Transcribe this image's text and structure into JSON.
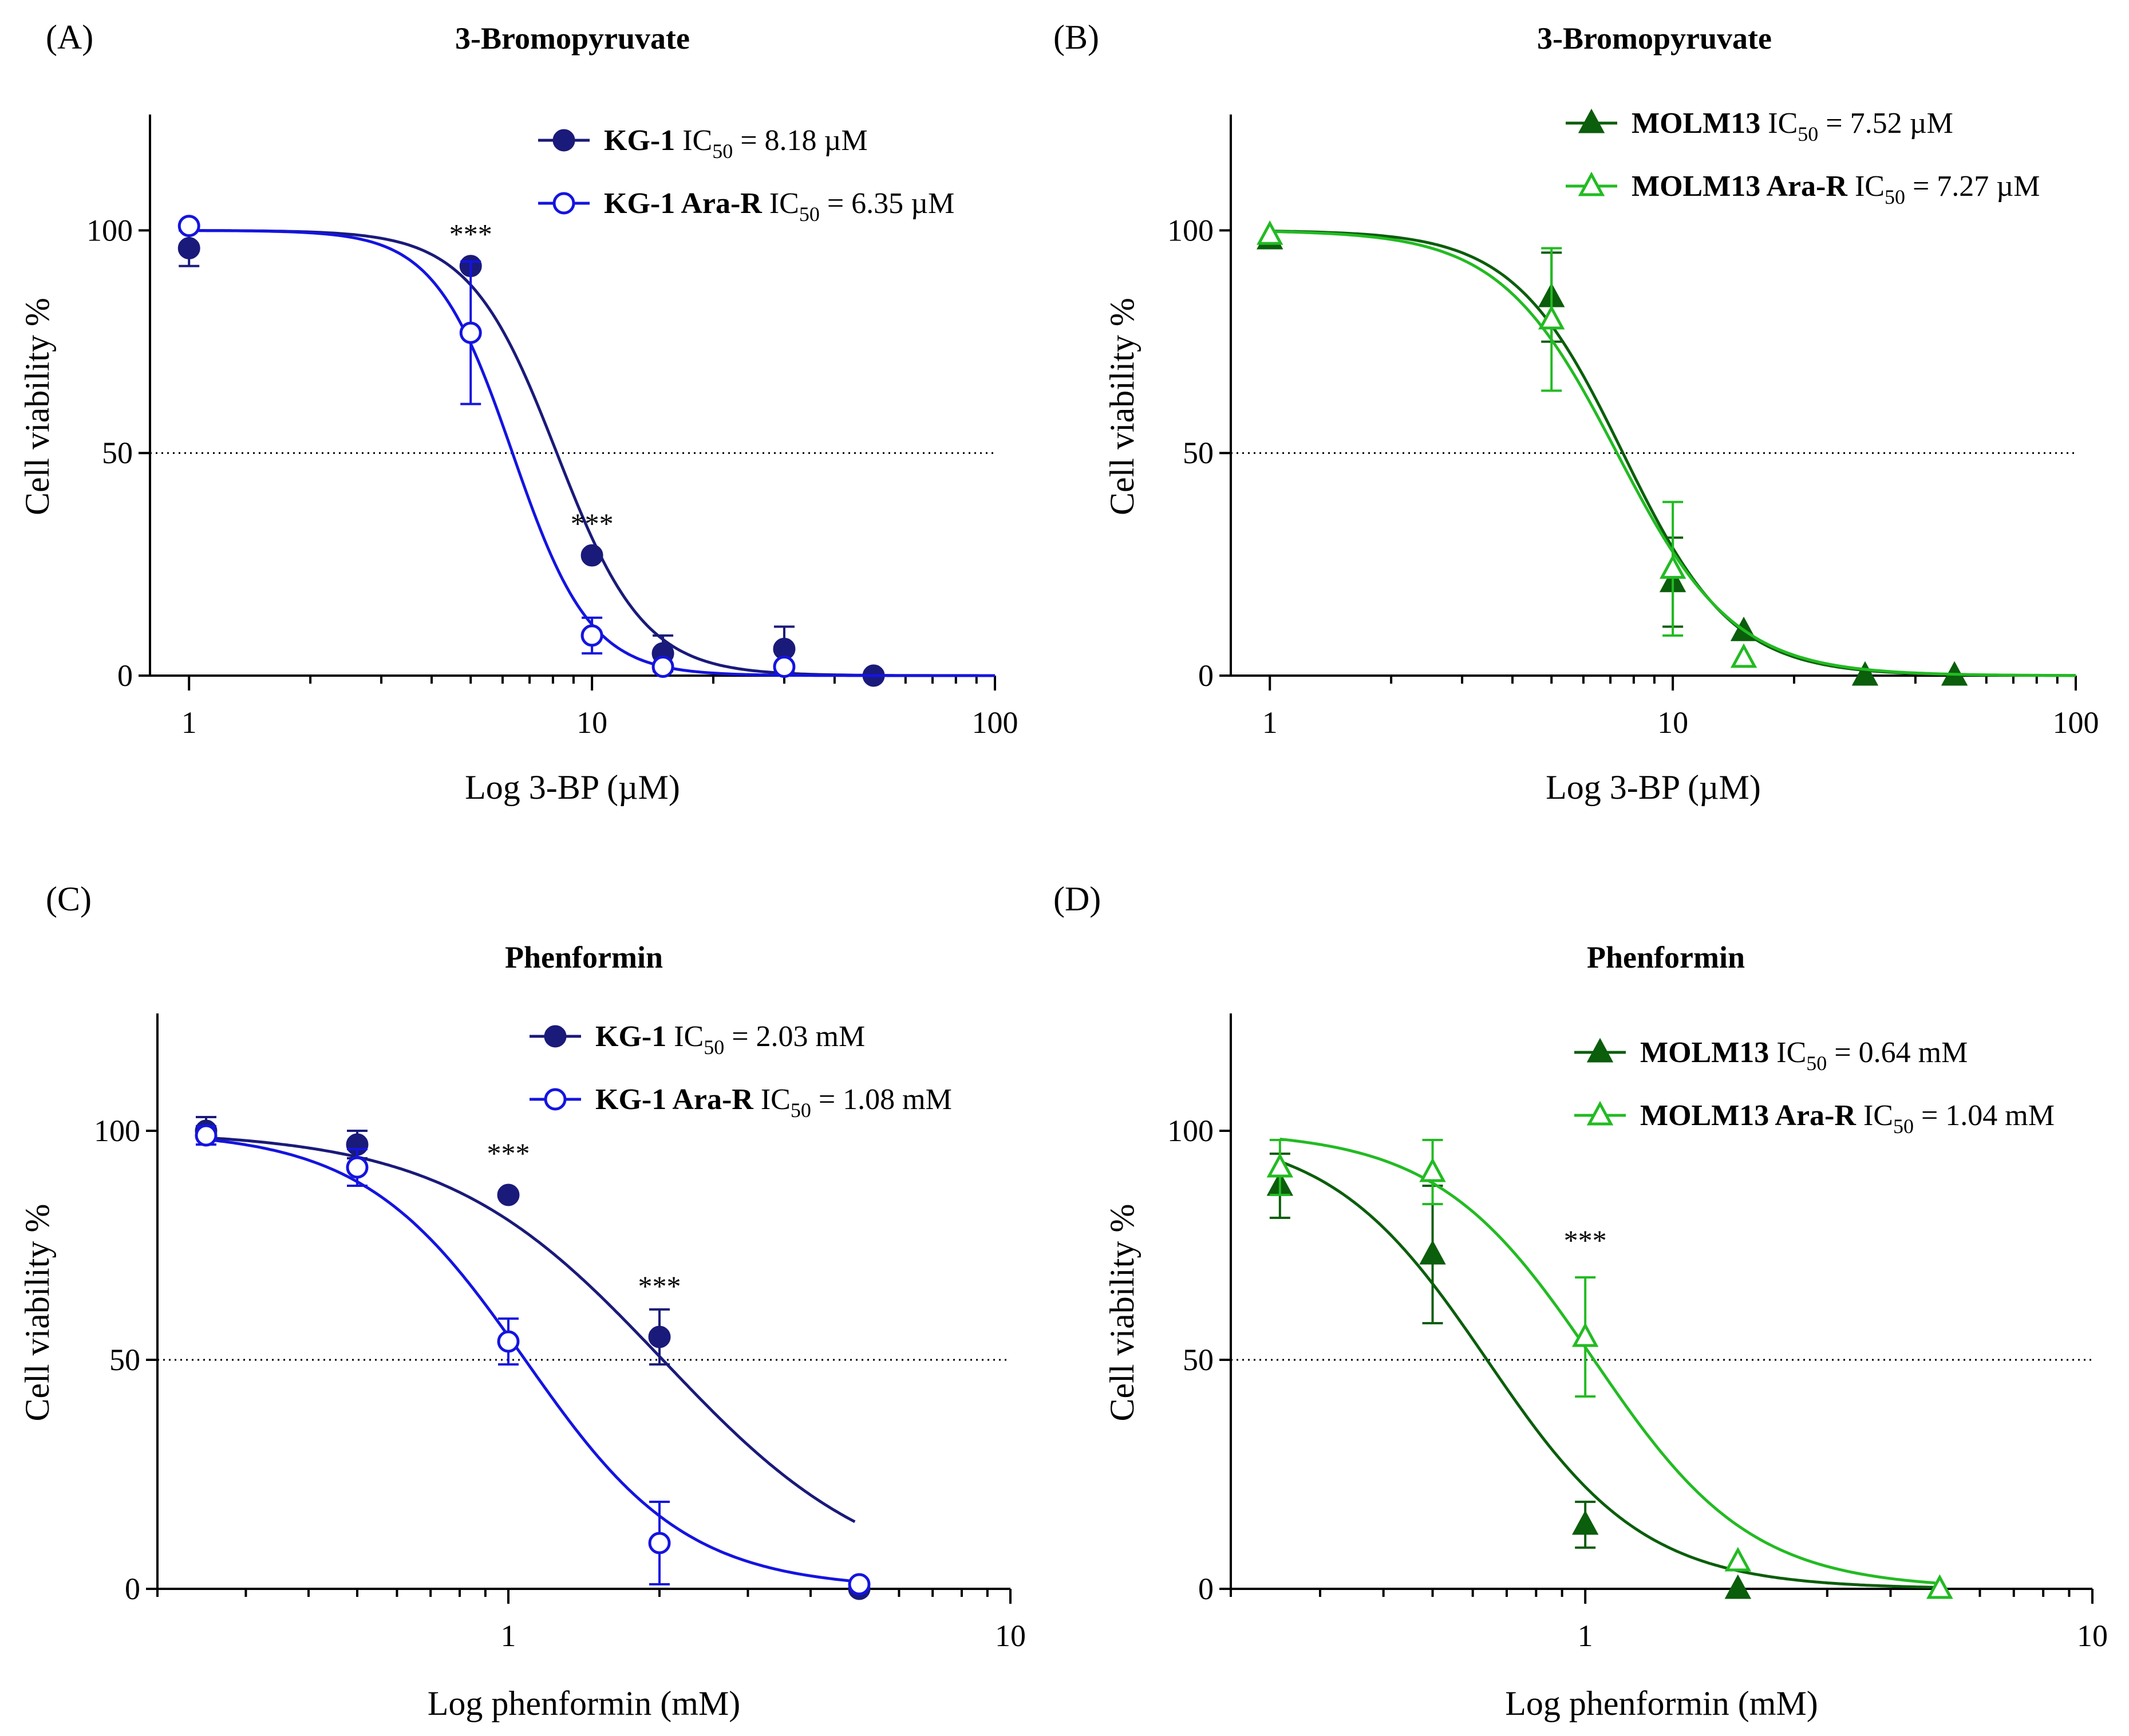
{
  "chart_data": [
    {
      "id": "A",
      "type": "scatter",
      "panel_label": "(A)",
      "title": "3-Bromopyruvate",
      "xlabel": "Log 3-BP (µM)",
      "ylabel": "Cell viability %",
      "xscale": "log",
      "xlim": [
        0.8,
        100
      ],
      "ylim": [
        0,
        125
      ],
      "xticks": [
        1,
        10,
        100
      ],
      "xtick_labels": [
        "1",
        "10",
        "100"
      ],
      "xminor_ticks": [
        2,
        3,
        4,
        5,
        6,
        7,
        8,
        9,
        20,
        30,
        40,
        50,
        60,
        70,
        80,
        90
      ],
      "yticks": [
        0,
        50,
        100
      ],
      "ytick_labels": [
        "0",
        "50",
        "100"
      ],
      "reference_line": 50,
      "legend_position": "top-right",
      "series": [
        {
          "name": "KG-1",
          "ic50_text": "8.18 µM",
          "color": "#1a1a7a",
          "marker": "circle",
          "filled": true,
          "x": [
            1,
            5,
            10,
            15,
            30,
            50
          ],
          "y": [
            96,
            92,
            27,
            5,
            6,
            0
          ],
          "err": [
            4,
            0,
            0,
            4,
            5,
            0
          ],
          "fit": {
            "ic50": 8.18,
            "hill": 4.0
          }
        },
        {
          "name": "KG-1 Ara-R",
          "ic50_text": "6.35 µM",
          "color": "#1414e0",
          "marker": "circle",
          "filled": false,
          "x": [
            1,
            5,
            10,
            15,
            30
          ],
          "y": [
            101,
            77,
            9,
            2,
            2
          ],
          "err": [
            0,
            16,
            4,
            0,
            0
          ],
          "fit": {
            "ic50": 6.35,
            "hill": 4.5
          }
        }
      ],
      "annotations": [
        {
          "text": "***",
          "x": 5,
          "y": 97
        },
        {
          "text": "***",
          "x": 10,
          "y": 32
        }
      ]
    },
    {
      "id": "B",
      "type": "scatter",
      "panel_label": "(B)",
      "title": "3-Bromopyruvate",
      "xlabel": "Log 3-BP (µM)",
      "ylabel": "Cell viability %",
      "xscale": "log",
      "xlim": [
        0.8,
        100
      ],
      "ylim": [
        0,
        125
      ],
      "xticks": [
        1,
        10,
        100
      ],
      "xtick_labels": [
        "1",
        "10",
        "100"
      ],
      "xminor_ticks": [
        2,
        3,
        4,
        5,
        6,
        7,
        8,
        9,
        20,
        30,
        40,
        50,
        60,
        70,
        80,
        90
      ],
      "yticks": [
        0,
        50,
        100
      ],
      "ytick_labels": [
        "0",
        "50",
        "100"
      ],
      "reference_line": 50,
      "legend_position": "top-right",
      "series": [
        {
          "name": "MOLM13",
          "ic50_text": "7.52 µM",
          "color": "#0b5e0b",
          "marker": "triangle",
          "filled": true,
          "x": [
            1,
            5,
            10,
            15,
            30,
            50
          ],
          "y": [
            98,
            85,
            21,
            10,
            0,
            0
          ],
          "err": [
            0,
            10,
            10,
            0,
            0,
            0
          ],
          "fit": {
            "ic50": 7.52,
            "hill": 3.2
          }
        },
        {
          "name": "MOLM13 Ara-R",
          "ic50_text": "7.27 µM",
          "color": "#22bb22",
          "marker": "triangle",
          "filled": false,
          "x": [
            1,
            5,
            10,
            15
          ],
          "y": [
            99,
            80,
            24,
            4
          ],
          "err": [
            0,
            16,
            15,
            0
          ],
          "fit": {
            "ic50": 7.27,
            "hill": 3.0
          }
        }
      ],
      "annotations": []
    },
    {
      "id": "C",
      "type": "scatter",
      "panel_label": "(C)",
      "title": "Phenformin",
      "xlabel": "Log phenformin (mM)",
      "ylabel": "Cell viability %",
      "xscale": "log",
      "xlim": [
        0.2,
        10
      ],
      "ylim": [
        0,
        125
      ],
      "xticks": [
        1,
        10
      ],
      "xtick_labels": [
        "1",
        "10"
      ],
      "xminor_ticks": [
        0.2,
        0.3,
        0.4,
        0.5,
        0.6,
        0.7,
        0.8,
        0.9,
        2,
        3,
        4,
        5,
        6,
        7,
        8,
        9
      ],
      "yticks": [
        0,
        50,
        100
      ],
      "ytick_labels": [
        "0",
        "50",
        "100"
      ],
      "reference_line": 50,
      "legend_position": "top-right",
      "series": [
        {
          "name": "KG-1",
          "ic50_text": "2.03 mM",
          "color": "#1a1a7a",
          "marker": "circle",
          "filled": true,
          "x": [
            0.25,
            0.5,
            1,
            2,
            5
          ],
          "y": [
            100,
            97,
            86,
            55,
            0
          ],
          "err": [
            3,
            3,
            0,
            6,
            0
          ],
          "fit": {
            "ic50": 2.03,
            "hill": 2.0,
            "xstart": 0.25,
            "xend": 4.9
          }
        },
        {
          "name": "KG-1 Ara-R",
          "ic50_text": "1.08 mM",
          "color": "#1414e0",
          "marker": "circle",
          "filled": false,
          "x": [
            0.25,
            0.5,
            1,
            2,
            5
          ],
          "y": [
            99,
            92,
            54,
            10,
            1
          ],
          "err": [
            2,
            4,
            5,
            9,
            0
          ],
          "fit": {
            "ic50": 1.08,
            "hill": 2.7,
            "xstart": 0.25,
            "xend": 4.9
          }
        }
      ],
      "annotations": [
        {
          "text": "***",
          "x": 1,
          "y": 93
        },
        {
          "text": "***",
          "x": 2,
          "y": 64
        }
      ]
    },
    {
      "id": "D",
      "type": "scatter",
      "panel_label": "(D)",
      "title": "Phenformin",
      "xlabel": "Log phenformin (mM)",
      "ylabel": "Cell viability %",
      "xscale": "log",
      "xlim": [
        0.2,
        10
      ],
      "ylim": [
        0,
        125
      ],
      "xticks": [
        1,
        10
      ],
      "xtick_labels": [
        "1",
        "10"
      ],
      "xminor_ticks": [
        0.2,
        0.3,
        0.4,
        0.5,
        0.6,
        0.7,
        0.8,
        0.9,
        2,
        3,
        4,
        5,
        6,
        7,
        8,
        9
      ],
      "yticks": [
        0,
        50,
        100
      ],
      "ytick_labels": [
        "0",
        "50",
        "100"
      ],
      "reference_line": 50,
      "legend_position": "top-right",
      "series": [
        {
          "name": "MOLM13",
          "ic50_text": "0.64 mM",
          "color": "#0b5e0b",
          "marker": "triangle",
          "filled": true,
          "x": [
            0.25,
            0.5,
            1,
            2,
            5
          ],
          "y": [
            88,
            73,
            14,
            0,
            0
          ],
          "err": [
            7,
            15,
            5,
            0,
            0
          ],
          "fit": {
            "ic50": 0.64,
            "hill": 2.8,
            "xstart": 0.25,
            "xend": 4.9
          }
        },
        {
          "name": "MOLM13 Ara-R",
          "ic50_text": "1.04 mM",
          "color": "#22bb22",
          "marker": "triangle",
          "filled": false,
          "x": [
            0.25,
            0.5,
            1,
            2,
            5
          ],
          "y": [
            92,
            91,
            55,
            6,
            0
          ],
          "err": [
            6,
            7,
            13,
            0,
            0
          ],
          "fit": {
            "ic50": 1.04,
            "hill": 2.8,
            "xstart": 0.25,
            "xend": 4.9
          }
        }
      ],
      "annotations": [
        {
          "text": "***",
          "x": 1,
          "y": 74
        }
      ]
    }
  ]
}
